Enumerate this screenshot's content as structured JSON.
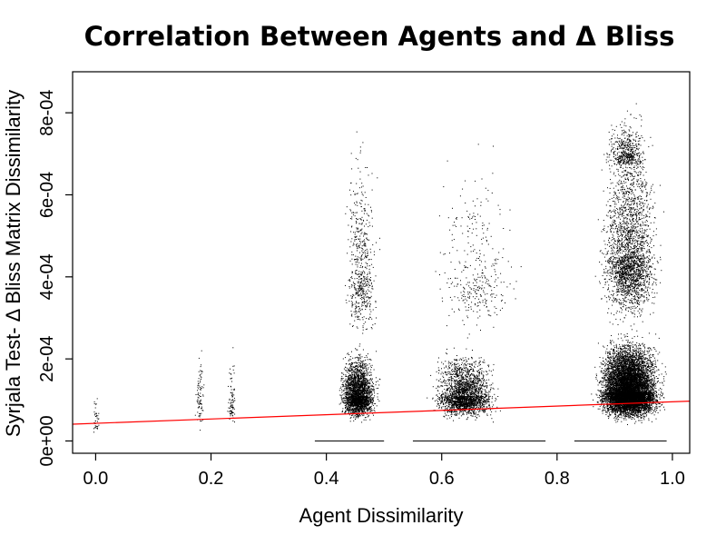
{
  "chart_data": {
    "type": "scatter",
    "title": "Correlation Between Agents and Δ Bliss",
    "xlabel": "Agent Dissimilarity",
    "ylabel": "Syrjala Test- Δ Bliss Matrix Dissimilarity",
    "xlim": [
      -0.04,
      1.03
    ],
    "ylim": [
      -3e-05,
      0.0009
    ],
    "x_ticks": [
      {
        "value": 0.0,
        "label": "0.0"
      },
      {
        "value": 0.2,
        "label": "0.2"
      },
      {
        "value": 0.4,
        "label": "0.4"
      },
      {
        "value": 0.6,
        "label": "0.6"
      },
      {
        "value": 0.8,
        "label": "0.8"
      },
      {
        "value": 1.0,
        "label": "1.0"
      }
    ],
    "y_ticks": [
      {
        "value": 0.0,
        "label": "0e+00"
      },
      {
        "value": 0.0002,
        "label": "2e-04"
      },
      {
        "value": 0.0004,
        "label": "4e-04"
      },
      {
        "value": 0.0006,
        "label": "6e-04"
      },
      {
        "value": 0.0008,
        "label": "8e-04"
      }
    ],
    "grid": false,
    "point_color": "#000000",
    "series": [
      {
        "clusters": [
          {
            "x_center": 0.0,
            "x_spread": 0.003,
            "y_center": 5e-05,
            "y_spread": 4e-05,
            "count": 40
          },
          {
            "x_center": 0.18,
            "x_spread": 0.004,
            "y_center": 0.0001,
            "y_spread": 6e-05,
            "count": 90
          },
          {
            "x_center": 0.235,
            "x_spread": 0.004,
            "y_center": 0.0001,
            "y_spread": 6e-05,
            "count": 90
          },
          {
            "x_center": 0.455,
            "x_spread": 0.018,
            "y_center": 0.00011,
            "y_spread": 5e-05,
            "count": 2600
          },
          {
            "x_center": 0.46,
            "x_spread": 0.016,
            "y_center": 0.0004,
            "y_spread": 0.00015,
            "count": 600
          },
          {
            "x_center": 0.64,
            "x_spread": 0.03,
            "y_center": 0.00011,
            "y_spread": 5e-05,
            "count": 2400
          },
          {
            "x_center": 0.66,
            "x_spread": 0.04,
            "y_center": 0.0004,
            "y_spread": 0.00014,
            "count": 350
          },
          {
            "x_center": 0.925,
            "x_spread": 0.03,
            "y_center": 0.00012,
            "y_spread": 6e-05,
            "count": 9500
          },
          {
            "x_center": 0.925,
            "x_spread": 0.028,
            "y_center": 0.00045,
            "y_spread": 0.00015,
            "count": 2600
          },
          {
            "x_center": 0.92,
            "x_spread": 0.02,
            "y_center": 0.0007,
            "y_spread": 4e-05,
            "count": 450
          }
        ],
        "baseline_bands": [
          {
            "x_from": 0.38,
            "x_to": 0.5,
            "y": 0.0
          },
          {
            "x_from": 0.55,
            "x_to": 0.78,
            "y": 0.0
          },
          {
            "x_from": 0.83,
            "x_to": 0.99,
            "y": 0.0
          }
        ]
      }
    ],
    "regression_line": {
      "color": "#ff0000",
      "intercept": 4.3e-05,
      "slope": 5.25e-05
    }
  }
}
